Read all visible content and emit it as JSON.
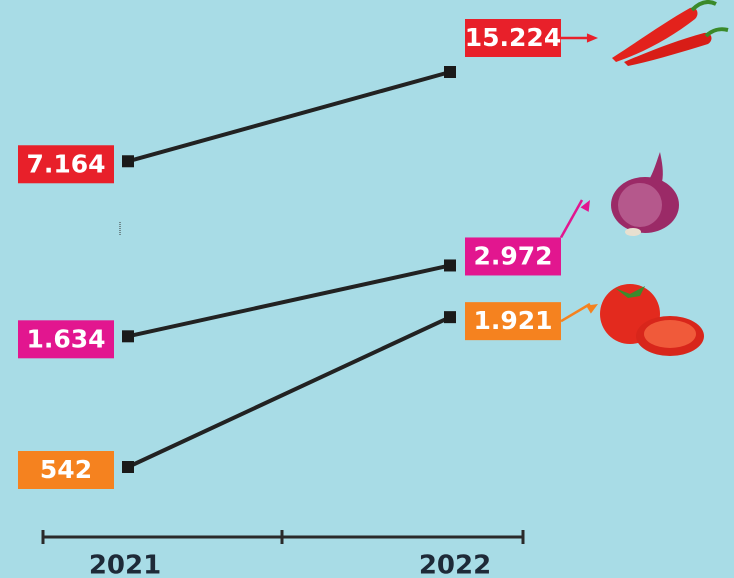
{
  "chart_data": {
    "type": "line",
    "log_scale": true,
    "x": [
      "2021",
      "2022"
    ],
    "series": [
      {
        "color": "#e8202a",
        "values": [
          7164,
          15224
        ],
        "value_labels": [
          "7.164",
          "15.224"
        ]
      },
      {
        "color": "#e2168f",
        "values": [
          1634,
          2972
        ],
        "value_labels": [
          "1.634",
          "2.972"
        ]
      },
      {
        "color": "#f5821f",
        "values": [
          542,
          1921
        ],
        "value_labels": [
          "542",
          "1.921"
        ]
      }
    ]
  }
}
